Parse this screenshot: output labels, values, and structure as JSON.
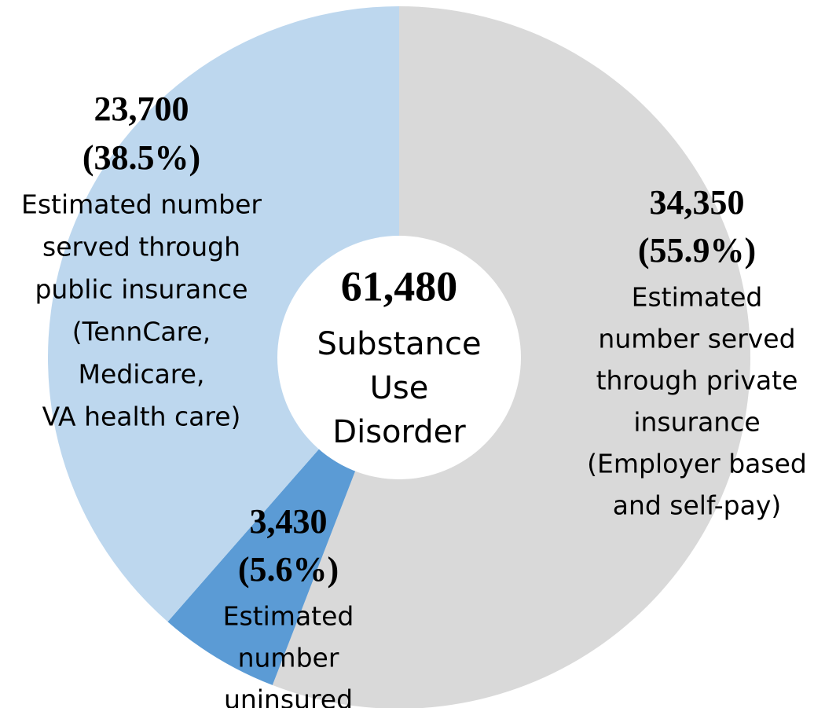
{
  "chart_data": {
    "type": "donut",
    "categories": [
      "private insurance",
      "uninsured",
      "public insurance"
    ],
    "values": [
      34350,
      3430,
      23700
    ],
    "value_labels": [
      "34,350",
      "3,430",
      "23,700"
    ],
    "percents": [
      {
        "value": 55.9,
        "label": "(55.9%)"
      },
      {
        "value": 5.6,
        "label": "(5.6%)"
      },
      {
        "value": 38.5,
        "label": "(38.5%)"
      }
    ],
    "descriptions": [
      [
        "Estimated",
        "number served",
        "through private",
        "insurance",
        "(Employer based",
        "and self-pay)"
      ],
      [
        "Estimated",
        "number",
        "uninsured"
      ],
      [
        "Estimated number",
        "served through",
        "public insurance",
        "(TennCare,",
        "Medicare,",
        "VA health care)"
      ]
    ],
    "colors": [
      "#d9d9d9",
      "#5b9bd5",
      "#bdd7ee"
    ],
    "total": {
      "value": 61480,
      "label": "61,480"
    },
    "center_label": [
      "Substance",
      "Use",
      "Disorder"
    ]
  }
}
